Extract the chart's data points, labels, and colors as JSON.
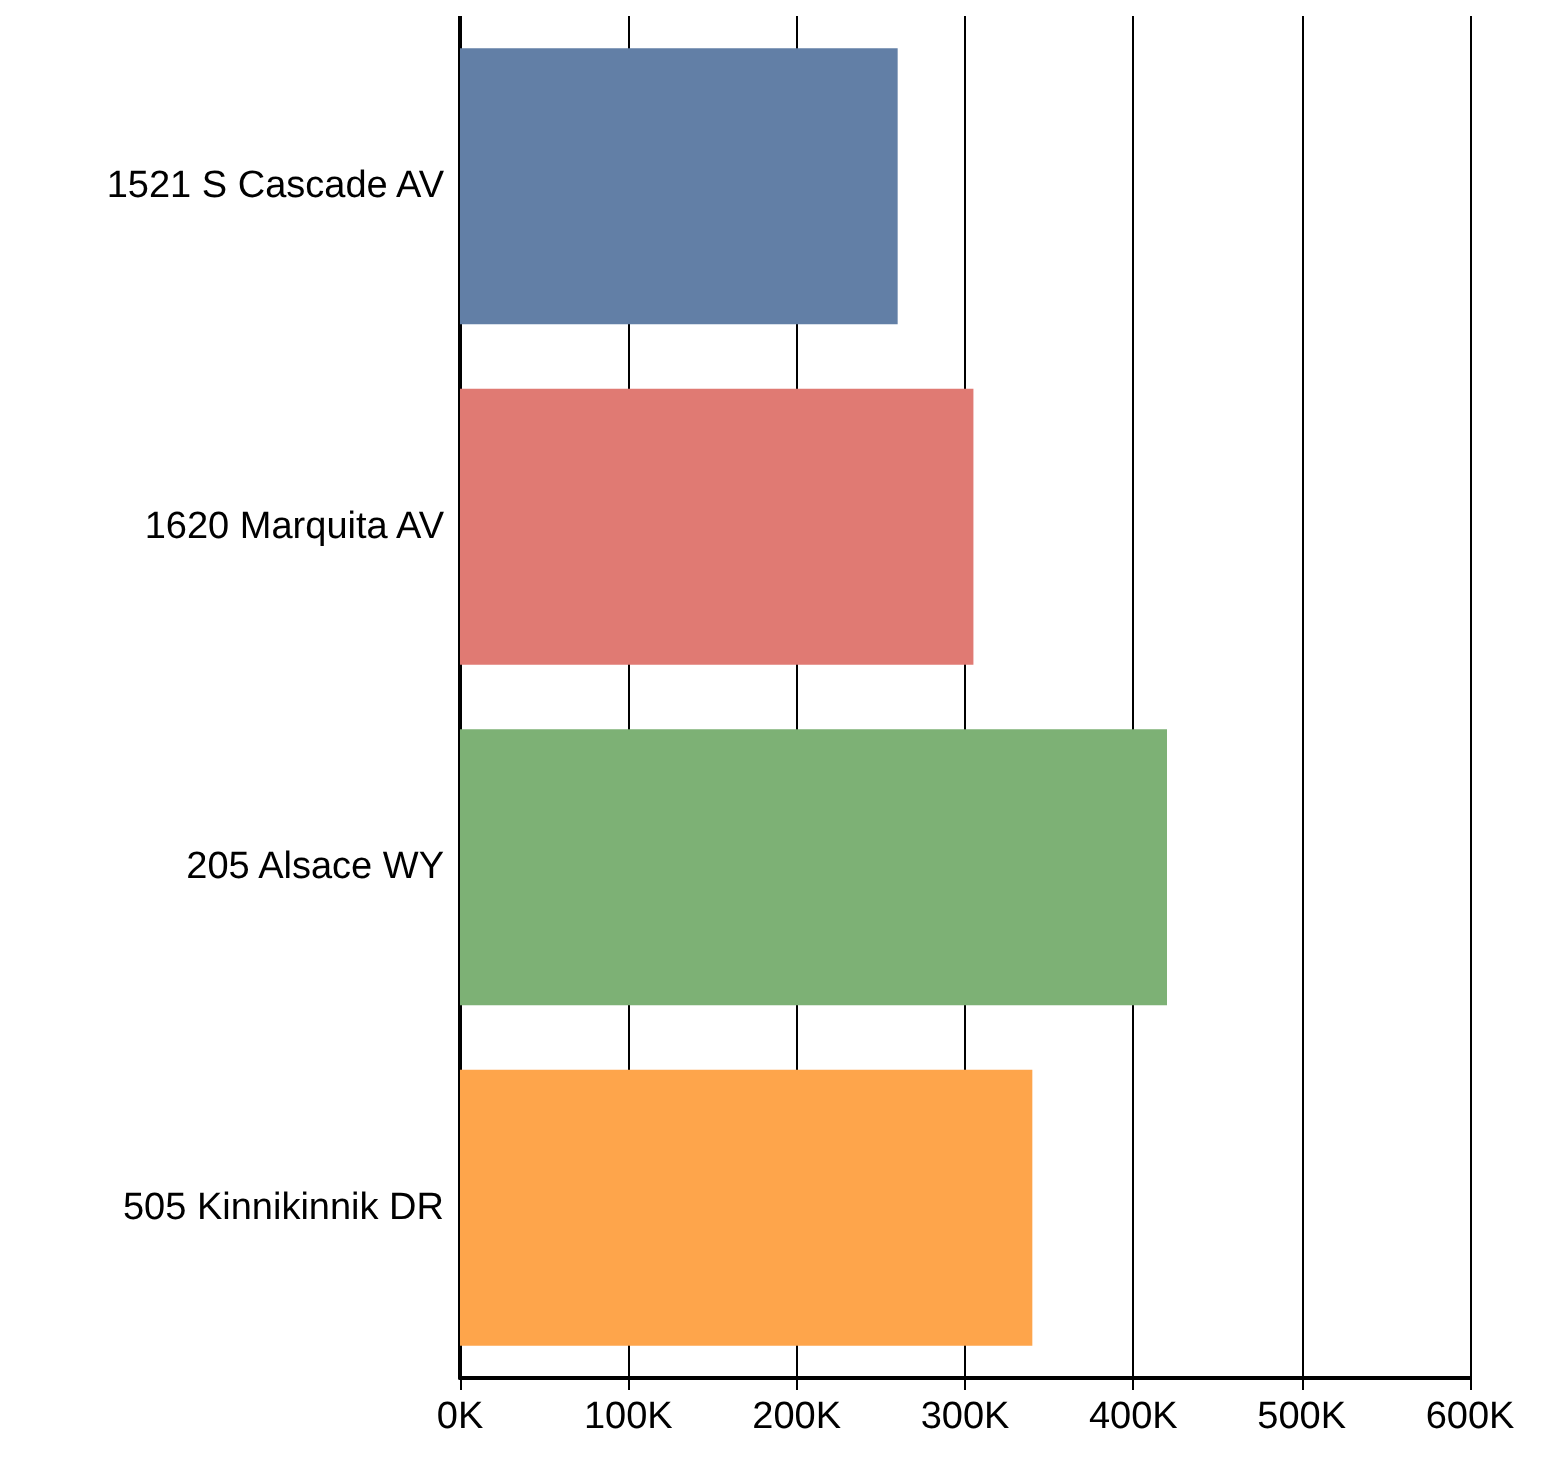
{
  "chart_data": {
    "type": "bar",
    "orientation": "horizontal",
    "categories": [
      "1521 S Cascade AV",
      "1620 Marquita AV",
      "205 Alsace WY",
      "505 Kinnikinnik DR"
    ],
    "values": [
      260000,
      305000,
      420000,
      340000
    ],
    "colors": [
      "#627fa6",
      "#e07a73",
      "#7db175",
      "#fea54b"
    ],
    "xlim": [
      0,
      600000
    ],
    "xticks": [
      {
        "value": 0,
        "label": "0K"
      },
      {
        "value": 100000,
        "label": "100K"
      },
      {
        "value": 200000,
        "label": "200K"
      },
      {
        "value": 300000,
        "label": "300K"
      },
      {
        "value": 400000,
        "label": "400K"
      },
      {
        "value": 500000,
        "label": "500K"
      },
      {
        "value": 600000,
        "label": "600K"
      }
    ],
    "grid": "x"
  }
}
